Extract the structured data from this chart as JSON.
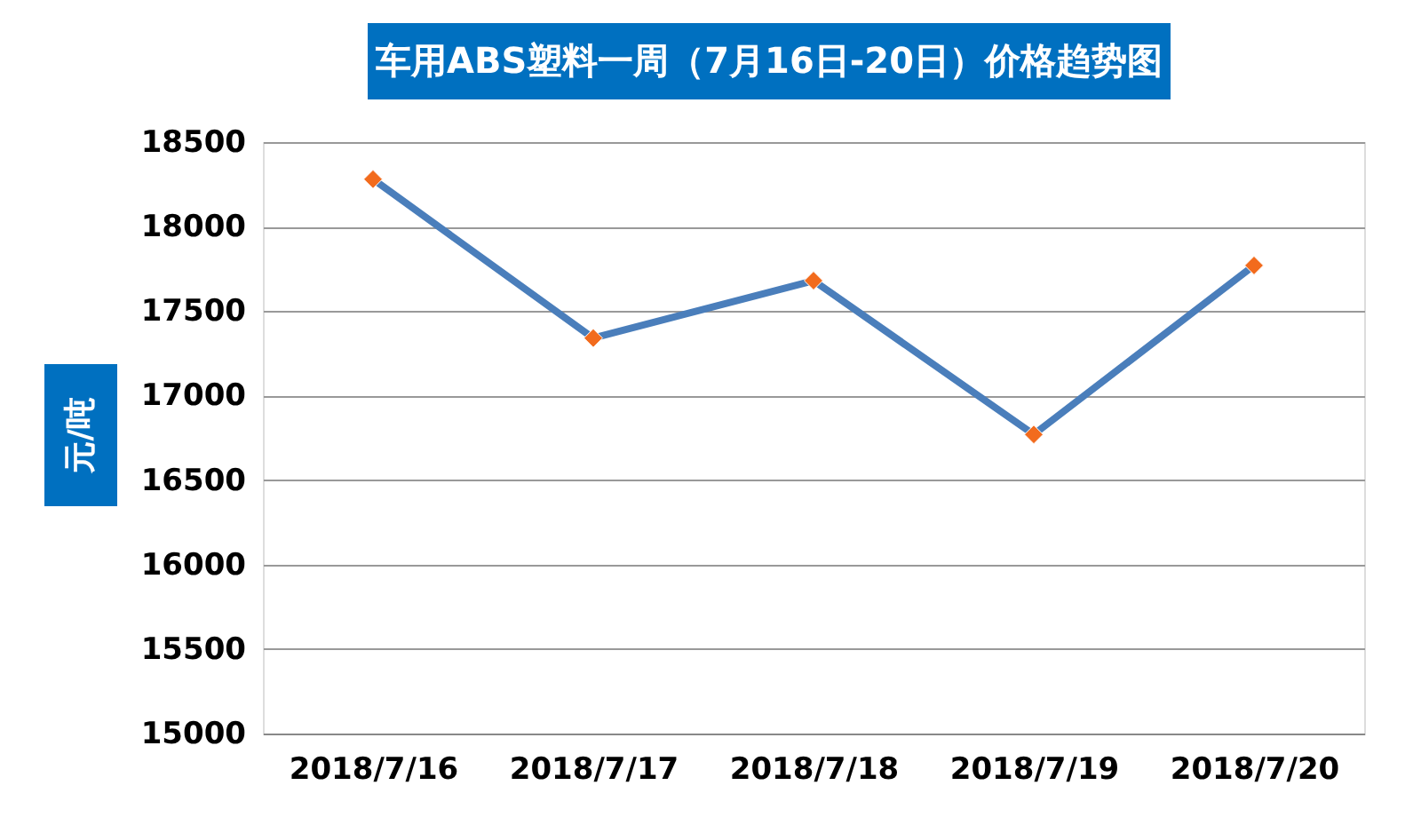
{
  "chart_data": {
    "type": "line",
    "title": "车用ABS塑料一周（7月16日-20日）价格趋势图",
    "ylabel": "元/吨",
    "categories": [
      "2018/7/16",
      "2018/7/17",
      "2018/7/18",
      "2018/7/19",
      "2018/7/20"
    ],
    "series": [
      {
        "color": "#4a7ebb",
        "colors": [
          "#f26b1d",
          "#f26b1d",
          "#f26b1d",
          "#f26b1d",
          "#f26b1d"
        ],
        "values": [
          18280,
          17340,
          17680,
          16770,
          17770
        ]
      }
    ],
    "ylim": [
      15000,
      18500
    ],
    "yticks": [
      15000,
      15500,
      16000,
      16500,
      17000,
      17500,
      18000,
      18500
    ],
    "grid": "y",
    "marker": "diamond",
    "line_style": "solid"
  }
}
